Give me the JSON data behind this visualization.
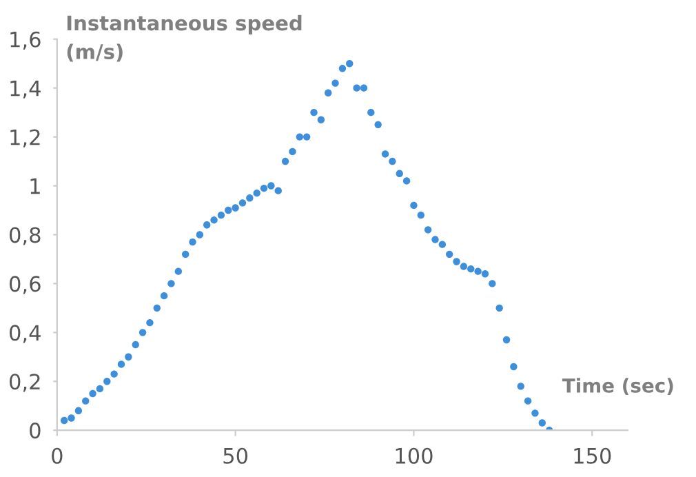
{
  "chart_data": {
    "type": "scatter",
    "ylabel": "Instantaneous speed\n(m/s)",
    "xlabel": "Time (sec)",
    "x": [
      2,
      4,
      6,
      8,
      10,
      12,
      14,
      16,
      18,
      20,
      22,
      24,
      26,
      28,
      30,
      32,
      34,
      36,
      38,
      40,
      42,
      44,
      46,
      48,
      50,
      52,
      54,
      56,
      58,
      60,
      62,
      64,
      66,
      68,
      70,
      72,
      74,
      76,
      78,
      80,
      82,
      84,
      86,
      88,
      90,
      92,
      94,
      96,
      98,
      100,
      102,
      104,
      106,
      108,
      110,
      112,
      114,
      116,
      118,
      120,
      122,
      124,
      126,
      128,
      130,
      132,
      134,
      136,
      138
    ],
    "series": [
      {
        "color": "#3d8fdc",
        "values": [
          0.04,
          0.05,
          0.08,
          0.12,
          0.15,
          0.17,
          0.2,
          0.23,
          0.27,
          0.3,
          0.35,
          0.4,
          0.44,
          0.5,
          0.55,
          0.6,
          0.65,
          0.72,
          0.77,
          0.8,
          0.84,
          0.86,
          0.88,
          0.9,
          0.91,
          0.93,
          0.95,
          0.97,
          0.99,
          1.0,
          0.98,
          1.1,
          1.14,
          1.2,
          1.2,
          1.3,
          1.27,
          1.38,
          1.42,
          1.48,
          1.5,
          1.4,
          1.4,
          1.3,
          1.25,
          1.13,
          1.1,
          1.05,
          1.02,
          0.92,
          0.88,
          0.82,
          0.78,
          0.76,
          0.72,
          0.69,
          0.67,
          0.66,
          0.65,
          0.64,
          0.6,
          0.5,
          0.37,
          0.26,
          0.18,
          0.12,
          0.07,
          0.03,
          0.0
        ]
      }
    ],
    "xlim": [
      0,
      160
    ],
    "xticks": [
      0,
      50,
      100,
      150
    ],
    "ylim": [
      0,
      1.6
    ],
    "yticks": [
      0,
      {
        "value": 0.2,
        "label": "0,2"
      },
      {
        "value": 0.4,
        "label": "0,4"
      },
      {
        "value": 0.6,
        "label": "0,6"
      },
      {
        "value": 0.8,
        "label": "0,8"
      },
      1,
      {
        "value": 1.2,
        "label": "1,2"
      },
      {
        "value": 1.4,
        "label": "1,4"
      },
      {
        "value": 1.6,
        "label": "1,6"
      }
    ],
    "marker": "circle",
    "grid": false,
    "legend": false
  }
}
